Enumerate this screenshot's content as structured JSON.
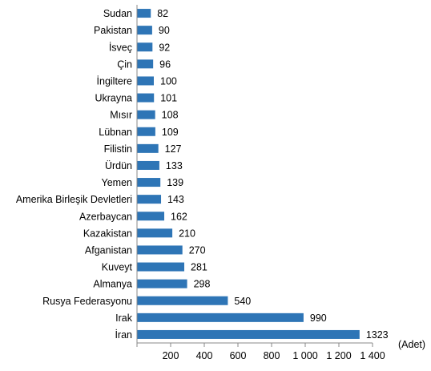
{
  "chart_data": {
    "type": "bar",
    "orientation": "horizontal",
    "categories": [
      "Sudan",
      "Pakistan",
      "İsveç",
      "Çin",
      "İngiltere",
      "Ukrayna",
      "Mısır",
      "Lübnan",
      "Filistin",
      "Ürdün",
      "Yemen",
      "Amerika Birleşik Devletleri",
      "Azerbaycan",
      "Kazakistan",
      "Afganistan",
      "Kuveyt",
      "Almanya",
      "Rusya Federasyonu",
      "Irak",
      "İran"
    ],
    "values": [
      82,
      90,
      92,
      96,
      100,
      101,
      108,
      109,
      127,
      133,
      139,
      143,
      162,
      210,
      270,
      281,
      298,
      540,
      990,
      1323
    ],
    "value_labels": [
      "82",
      "90",
      "92",
      "96",
      "100",
      "101",
      "108",
      "109",
      "127",
      "133",
      "139",
      "143",
      "162",
      "210",
      "270",
      "281",
      "298",
      "540",
      "990",
      "1323"
    ],
    "x_ticks": [
      0,
      200,
      400,
      600,
      800,
      1000,
      1200,
      1400
    ],
    "x_tick_labels": [
      "",
      "200",
      "400",
      "600",
      "800",
      "1 000",
      "1 200",
      "1 400"
    ],
    "xlim": [
      0,
      1400
    ],
    "unit_label": "(Adet)",
    "bar_color": "#2e75b6",
    "grid": false
  }
}
